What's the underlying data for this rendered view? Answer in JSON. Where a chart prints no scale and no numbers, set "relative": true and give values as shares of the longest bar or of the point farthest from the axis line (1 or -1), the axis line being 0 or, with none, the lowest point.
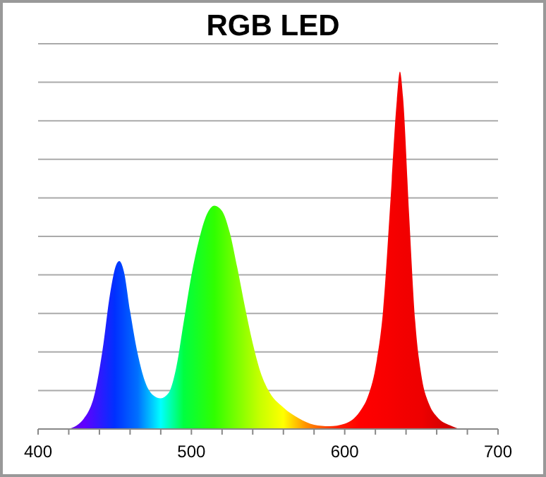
{
  "chart_data": {
    "type": "area",
    "title": "RGB LED",
    "relative": true,
    "grid": "y",
    "x": [
      420,
      430,
      437,
      442,
      447,
      451,
      453,
      456,
      460,
      465,
      470,
      475,
      480,
      485,
      490,
      495,
      500,
      505,
      510,
      515,
      520,
      525,
      530,
      535,
      540,
      545,
      550,
      560,
      570,
      580,
      590,
      600,
      610,
      615,
      620,
      625,
      630,
      634,
      636,
      638,
      642,
      646,
      650,
      655,
      660,
      670,
      675
    ],
    "values": [
      0,
      0.03,
      0.1,
      0.22,
      0.38,
      0.46,
      0.47,
      0.44,
      0.33,
      0.21,
      0.13,
      0.095,
      0.086,
      0.1,
      0.17,
      0.3,
      0.43,
      0.53,
      0.6,
      0.625,
      0.61,
      0.55,
      0.45,
      0.34,
      0.24,
      0.16,
      0.11,
      0.06,
      0.03,
      0.012,
      0.008,
      0.015,
      0.05,
      0.09,
      0.17,
      0.33,
      0.65,
      0.92,
      1,
      0.93,
      0.6,
      0.3,
      0.15,
      0.07,
      0.035,
      0.008,
      0
    ],
    "xlim": [
      400,
      700
    ],
    "xticks": [
      400,
      {
        "value": 420,
        "label": null
      },
      {
        "value": 440,
        "label": null
      },
      {
        "value": 460,
        "label": null
      },
      {
        "value": 480,
        "label": null
      },
      500,
      {
        "value": 520,
        "label": null
      },
      {
        "value": 540,
        "label": null
      },
      {
        "value": 560,
        "label": null
      },
      {
        "value": 580,
        "label": null
      },
      600,
      {
        "value": 620,
        "label": null
      },
      {
        "value": 640,
        "label": null
      },
      {
        "value": 660,
        "label": null
      },
      {
        "value": 680,
        "label": null
      },
      700
    ]
  }
}
